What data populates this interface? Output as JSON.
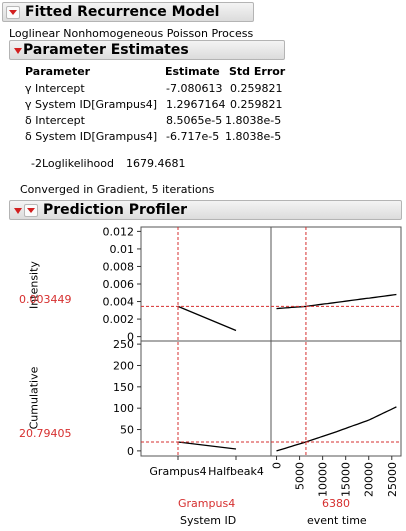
{
  "report": {
    "title": "Fitted Recurrence Model",
    "model_description": "Loglinear Nonhomogeneous Poisson Process"
  },
  "parameter_estimates": {
    "title": "Parameter Estimates",
    "columns": [
      "Parameter",
      "Estimate",
      "Std Error"
    ],
    "rows": [
      {
        "parameter": "γ Intercept",
        "estimate": "-7.080613",
        "std_error": "0.259821"
      },
      {
        "parameter": "γ System ID[Grampus4]",
        "estimate": "1.2967164",
        "std_error": "0.259821"
      },
      {
        "parameter": "δ Intercept",
        "estimate": "8.5065e-5",
        "std_error": "1.8038e-5"
      },
      {
        "parameter": "δ System ID[Grampus4]",
        "estimate": "-6.717e-5",
        "std_error": "1.8038e-5"
      }
    ],
    "loglik_label": "-2Loglikelihood",
    "loglik_value": "1679.4681"
  },
  "convergence": "Converged in Gradient, 5 iterations",
  "profiler": {
    "title": "Prediction Profiler",
    "accent_color": "#d62f2f",
    "rows": [
      {
        "label": "Intensity",
        "current_value": "0.003449",
        "ticks": [
          "0.012",
          "0.01",
          "0.008",
          "0.006",
          "0.004",
          "0.002",
          "0"
        ],
        "tick_values": [
          0.012,
          0.01,
          0.008,
          0.006,
          0.004,
          0.002,
          0
        ],
        "ylim": [
          -0.0005,
          0.0125
        ],
        "current": 0.003449
      },
      {
        "label": "Cumulative",
        "current_value": "20.79405",
        "ticks": [
          "250",
          "200",
          "150",
          "100",
          "50",
          "0"
        ],
        "tick_values": [
          250,
          200,
          150,
          100,
          50,
          0
        ],
        "ylim": [
          -12,
          255
        ],
        "current": 20.79405
      }
    ],
    "factors": [
      {
        "name": "System ID",
        "current_value": "Grampus4",
        "categories": [
          "Grampus4",
          "Halfbeak4"
        ]
      },
      {
        "name": "event time",
        "current_value": "6380",
        "ticks": [
          "0",
          "5000",
          "10000",
          "15000",
          "20000",
          "25000"
        ],
        "tick_values": [
          0,
          5000,
          10000,
          15000,
          20000,
          25000
        ],
        "xlim": [
          -1200,
          27000
        ],
        "current": 6380
      }
    ]
  },
  "chart_data": {
    "type": "line",
    "title": "Prediction Profiler",
    "panels": [
      {
        "row": "Intensity",
        "factor": "System ID",
        "x": [
          "Grampus4",
          "Halfbeak4"
        ],
        "y": [
          0.003449,
          0.0007
        ]
      },
      {
        "row": "Intensity",
        "factor": "event time",
        "x": [
          0,
          6380,
          26000
        ],
        "y": [
          0.0032,
          0.003449,
          0.0048
        ]
      },
      {
        "row": "Cumulative",
        "factor": "System ID",
        "x": [
          "Grampus4",
          "Halfbeak4"
        ],
        "y": [
          20.79405,
          4.5
        ]
      },
      {
        "row": "Cumulative",
        "factor": "event time",
        "x": [
          0,
          6380,
          13000,
          20000,
          26000
        ],
        "y": [
          0,
          20.79405,
          45,
          72,
          103
        ]
      }
    ],
    "current_x": {
      "System ID": "Grampus4",
      "event time": 6380
    },
    "current_y": {
      "Intensity": 0.003449,
      "Cumulative": 20.79405
    }
  }
}
